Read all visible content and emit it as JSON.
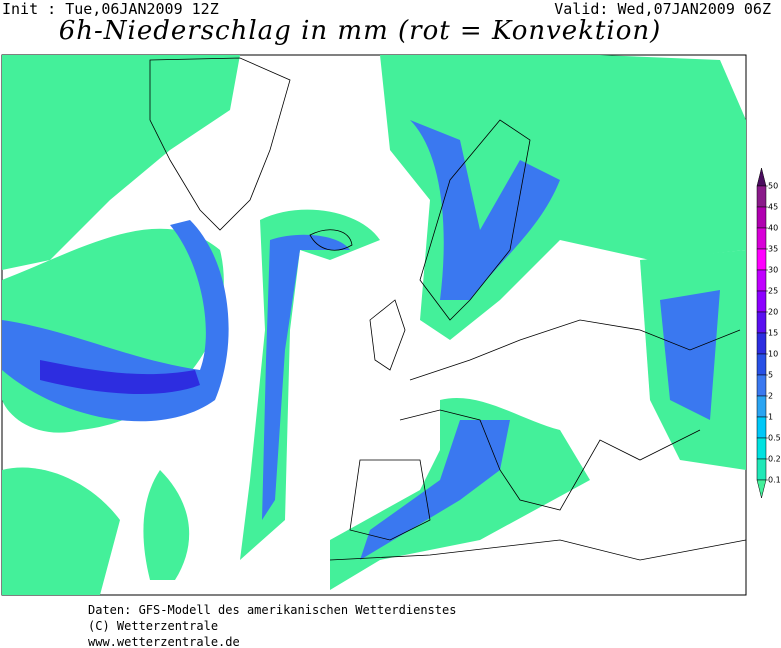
{
  "header": {
    "init": "Init : Tue,06JAN2009 12Z",
    "valid": "Valid: Wed,07JAN2009 06Z",
    "title": "6h-Niederschlag in mm (rot = Konvektion)"
  },
  "colorbar": {
    "ticks": [
      50,
      45,
      40,
      35,
      30,
      25,
      20,
      15,
      10,
      5,
      2,
      1,
      0.5,
      0.2,
      0.1
    ],
    "colors": [
      "#4a0d5e",
      "#8a1a8a",
      "#b000b0",
      "#d800d8",
      "#ff00ff",
      "#c000ff",
      "#8c00ff",
      "#5a10f0",
      "#2d2de0",
      "#2850e6",
      "#3a78f0",
      "#2aa4f2",
      "#00c8f8",
      "#00e2e0",
      "#20e8b8",
      "#44f09a"
    ]
  },
  "footer": {
    "line1": "Daten: GFS-Modell des amerikanischen Wetterdienstes",
    "line2": "(C) Wetterzentrale",
    "line3": "www.wetterzentrale.de"
  }
}
